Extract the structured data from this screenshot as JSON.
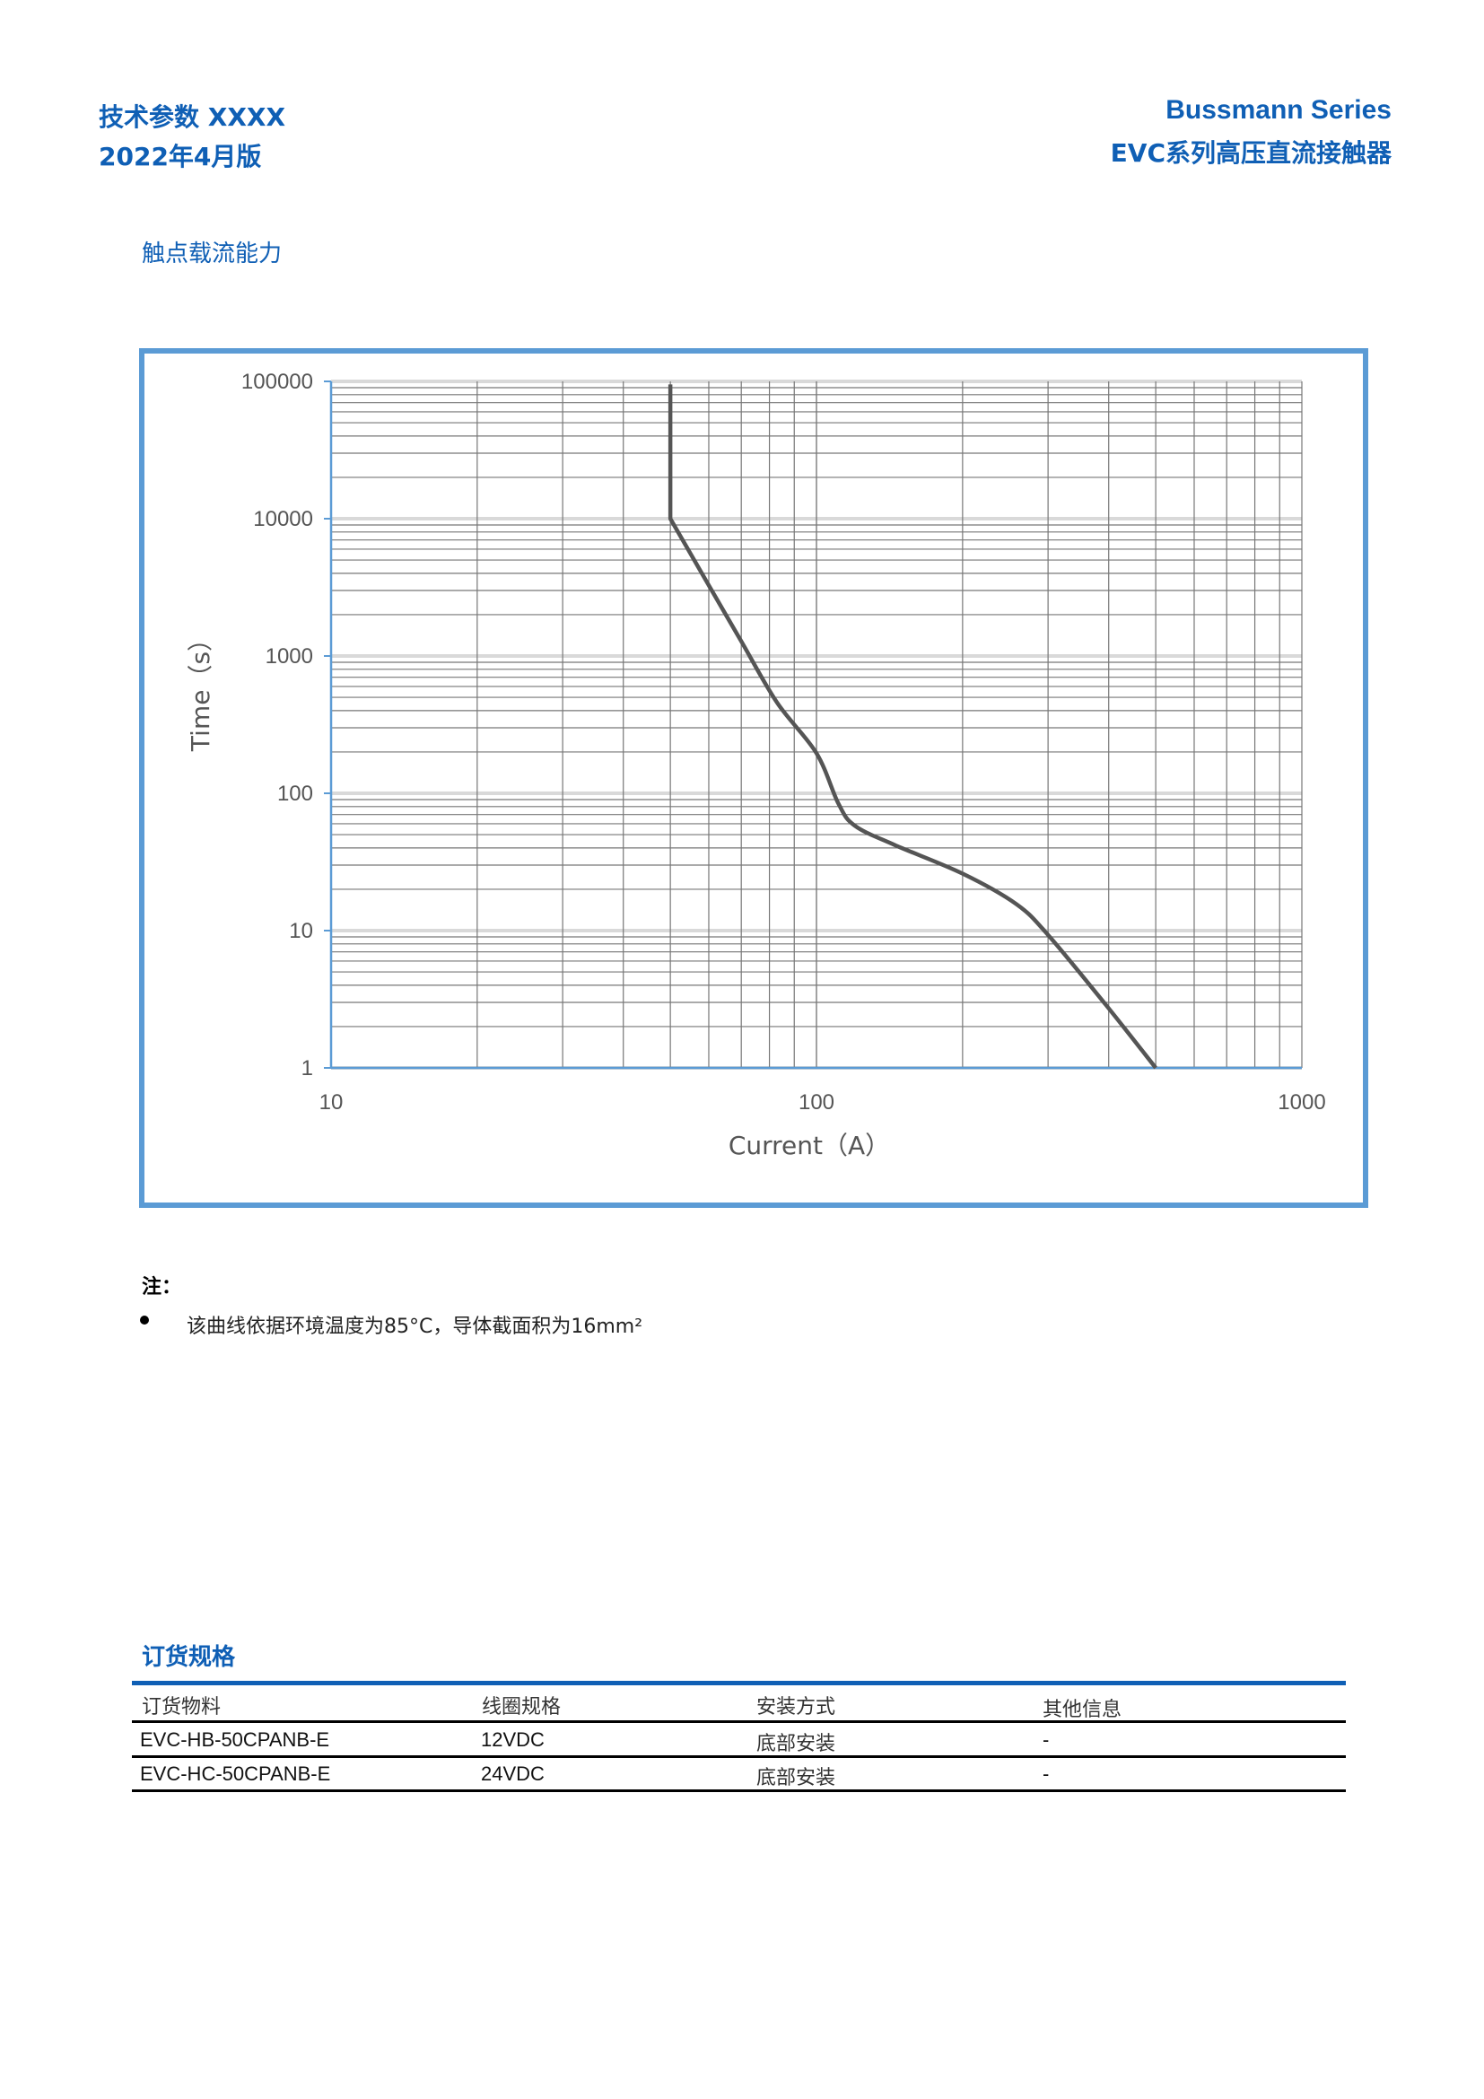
{
  "header": {
    "left_line1": "技术参数  XXXX",
    "left_line2": "2022年4月版",
    "right_line1": "Bussmann Series",
    "right_line2": "EVC系列高压直流接触器"
  },
  "section1_title": "触点载流能力",
  "colors": {
    "brand_blue": "#0f5fb5",
    "chart_border": "#5b9bd5",
    "curve": "#555555",
    "axis": "#5b9bd5"
  },
  "chart_data": {
    "type": "line",
    "xscale": "log",
    "yscale": "log",
    "xlabel": "Current（A）",
    "ylabel": "Time（s）",
    "xlim": [
      10,
      1000
    ],
    "ylim": [
      1,
      100000
    ],
    "grid": true,
    "x_ticks": [
      "10",
      "100",
      "1000"
    ],
    "y_ticks": [
      "100000",
      "10000",
      "1000",
      "100",
      "10",
      "1"
    ],
    "series": [
      {
        "x": [
          50,
          50,
          60,
          70,
          83,
          100,
          111,
          120,
          145,
          200,
          258,
          300,
          394,
          500
        ],
        "y": [
          95000,
          10000,
          3270,
          1280,
          456,
          196,
          84,
          58,
          42,
          26,
          15.6,
          9.3,
          2.9,
          1
        ]
      }
    ]
  },
  "notes": {
    "label": "注：",
    "items": [
      "该曲线依据环境温度为85°C，导体截面积为16mm²"
    ]
  },
  "order_section": {
    "title": "订货规格",
    "columns": [
      "订货物料",
      "线圈规格",
      "安装方式",
      "其他信息"
    ],
    "rows": [
      [
        "EVC-HB-50CPANB-E",
        "12VDC",
        "底部安装",
        "-"
      ],
      [
        "EVC-HC-50CPANB-E",
        "24VDC",
        "底部安装",
        "-"
      ]
    ]
  }
}
